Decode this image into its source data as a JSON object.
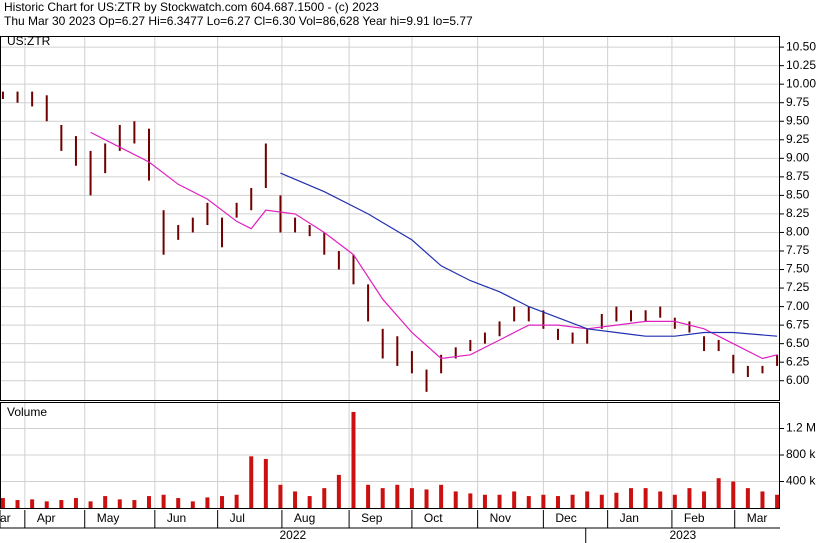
{
  "chart_data": [
    {
      "type": "ohlc",
      "title": "Historic Chart for US:ZTR by Stockwatch.com 604.687.1500 - (c) 2023",
      "subtitle": "Thu Mar 30 2023  Op=6.27  Hi=6.3477  Lo=6.27  Cl=6.30  Vol=86,628  Year hi=9.91  lo=5.77",
      "symbol": "US:ZTR",
      "color": "#700000",
      "x": [
        0,
        1,
        2,
        3,
        4,
        5,
        6,
        7,
        8,
        9,
        10,
        11,
        12,
        13,
        14,
        15,
        16,
        17,
        18,
        19,
        20,
        21,
        22,
        23,
        24,
        25,
        26,
        27,
        28,
        29,
        30,
        31,
        32,
        33,
        34,
        35,
        36,
        37,
        38,
        39,
        40,
        41,
        42,
        43,
        44,
        45,
        46,
        47,
        48,
        49,
        50,
        51,
        52,
        53
      ],
      "high": [
        9.9,
        9.9,
        9.9,
        9.85,
        9.45,
        9.3,
        9.1,
        9.2,
        9.45,
        9.5,
        9.4,
        8.3,
        8.1,
        8.2,
        8.4,
        8.2,
        8.4,
        8.6,
        9.2,
        8.5,
        8.2,
        8.1,
        8.0,
        7.75,
        7.7,
        7.3,
        6.7,
        6.6,
        6.4,
        6.15,
        6.35,
        6.45,
        6.55,
        6.65,
        6.8,
        7.0,
        7.0,
        6.95,
        6.7,
        6.65,
        6.7,
        6.9,
        7.0,
        6.95,
        6.95,
        7.0,
        6.85,
        6.8,
        6.6,
        6.55,
        6.35,
        6.2,
        6.2,
        6.35
      ],
      "low": [
        9.8,
        9.75,
        9.7,
        9.5,
        9.1,
        8.9,
        8.5,
        8.8,
        9.1,
        9.2,
        8.7,
        7.7,
        7.9,
        8.0,
        8.1,
        7.8,
        8.2,
        8.3,
        8.6,
        8.0,
        8.0,
        7.95,
        7.7,
        7.5,
        7.3,
        6.8,
        6.3,
        6.2,
        6.1,
        5.85,
        6.1,
        6.3,
        6.4,
        6.5,
        6.6,
        6.8,
        6.8,
        6.7,
        6.55,
        6.5,
        6.5,
        6.7,
        6.8,
        6.8,
        6.8,
        6.85,
        6.7,
        6.65,
        6.4,
        6.4,
        6.1,
        6.05,
        6.1,
        6.2
      ],
      "series": [
        {
          "color": "#e020c0",
          "x": [
            6,
            8,
            10,
            12,
            14,
            16,
            17,
            18,
            20,
            22,
            24,
            26,
            28,
            30,
            32,
            34,
            36,
            38,
            40,
            42,
            44,
            46,
            48,
            50,
            52,
            53
          ],
          "values": [
            9.35,
            9.15,
            8.95,
            8.65,
            8.45,
            8.15,
            8.05,
            8.3,
            8.25,
            8.0,
            7.7,
            7.1,
            6.65,
            6.3,
            6.35,
            6.55,
            6.75,
            6.75,
            6.7,
            6.75,
            6.8,
            6.8,
            6.7,
            6.5,
            6.3,
            6.35
          ]
        },
        {
          "color": "#2030b0",
          "x": [
            19,
            22,
            25,
            28,
            30,
            32,
            34,
            36,
            38,
            40,
            42,
            44,
            46,
            48,
            50,
            53
          ],
          "values": [
            8.8,
            8.55,
            8.25,
            7.9,
            7.55,
            7.35,
            7.2,
            7.0,
            6.85,
            6.7,
            6.65,
            6.6,
            6.6,
            6.65,
            6.65,
            6.6
          ]
        }
      ],
      "xlim": [
        -0.2,
        53.2
      ],
      "ylim": [
        5.74,
        10.65
      ],
      "yticks": [
        {
          "value": 6,
          "label": "6.00"
        },
        {
          "value": 6.25,
          "label": "6.25"
        },
        {
          "value": 6.5,
          "label": "6.50"
        },
        {
          "value": 6.75,
          "label": "6.75"
        },
        {
          "value": 7,
          "label": "7.00"
        },
        {
          "value": 7.25,
          "label": "7.25"
        },
        {
          "value": 7.5,
          "label": "7.50"
        },
        {
          "value": 7.75,
          "label": "7.75"
        },
        {
          "value": 8,
          "label": "8.00"
        },
        {
          "value": 8.25,
          "label": "8.25"
        },
        {
          "value": 8.5,
          "label": "8.50"
        },
        {
          "value": 8.75,
          "label": "8.75"
        },
        {
          "value": 9,
          "label": "9.00"
        },
        {
          "value": 9.25,
          "label": "9.25"
        },
        {
          "value": 9.5,
          "label": "9.50"
        },
        {
          "value": 9.75,
          "label": "9.75"
        },
        {
          "value": 10,
          "label": "10.00"
        },
        {
          "value": 10.25,
          "label": "10.25"
        },
        {
          "value": 10.5,
          "label": "10.50"
        }
      ],
      "xticks": [
        {
          "value": -0.2,
          "label": "ar"
        },
        {
          "value": 1.5,
          "label": "Apr"
        },
        {
          "value": 5.6,
          "label": "May"
        },
        {
          "value": 10.4,
          "label": "Jun"
        },
        {
          "value": 14.7,
          "label": "Jul"
        },
        {
          "value": 19.1,
          "label": "Aug"
        },
        {
          "value": 23.7,
          "label": "Sep"
        },
        {
          "value": 28,
          "label": "Oct"
        },
        {
          "value": 32.5,
          "label": "Nov"
        },
        {
          "value": 37,
          "label": "Dec"
        },
        {
          "value": 41.4,
          "label": "Jan"
        },
        {
          "value": 45.8,
          "label": "Feb"
        },
        {
          "value": 50.1,
          "label": "Mar"
        }
      ],
      "year_ticks": [
        {
          "value": -0.2,
          "label": "2022"
        },
        {
          "value": 39.9,
          "label": "2023"
        }
      ],
      "grid": true
    },
    {
      "type": "bar",
      "title": "Volume",
      "color": "#cc1010",
      "x": [
        0,
        1,
        2,
        3,
        4,
        5,
        6,
        7,
        8,
        9,
        10,
        11,
        12,
        13,
        14,
        15,
        16,
        17,
        18,
        19,
        20,
        21,
        22,
        23,
        24,
        25,
        26,
        27,
        28,
        29,
        30,
        31,
        32,
        33,
        34,
        35,
        36,
        37,
        38,
        39,
        40,
        41,
        42,
        43,
        44,
        45,
        46,
        47,
        48,
        49,
        50,
        51,
        52,
        53
      ],
      "values": [
        150000,
        120000,
        130000,
        100000,
        120000,
        150000,
        100000,
        180000,
        130000,
        120000,
        180000,
        200000,
        150000,
        100000,
        160000,
        180000,
        200000,
        780000,
        740000,
        350000,
        250000,
        180000,
        300000,
        500000,
        1450000,
        350000,
        300000,
        350000,
        300000,
        280000,
        350000,
        250000,
        220000,
        200000,
        200000,
        250000,
        180000,
        200000,
        180000,
        200000,
        250000,
        200000,
        230000,
        300000,
        300000,
        250000,
        200000,
        300000,
        250000,
        450000,
        400000,
        300000,
        250000,
        200000
      ],
      "xlim": [
        -0.2,
        53.2
      ],
      "ylim": [
        0,
        1600000
      ],
      "yticks": [
        {
          "value": 400000,
          "label": "400 k"
        },
        {
          "value": 800000,
          "label": "800 k"
        },
        {
          "value": 1200000,
          "label": "1.2 M"
        }
      ],
      "grid": true
    }
  ]
}
